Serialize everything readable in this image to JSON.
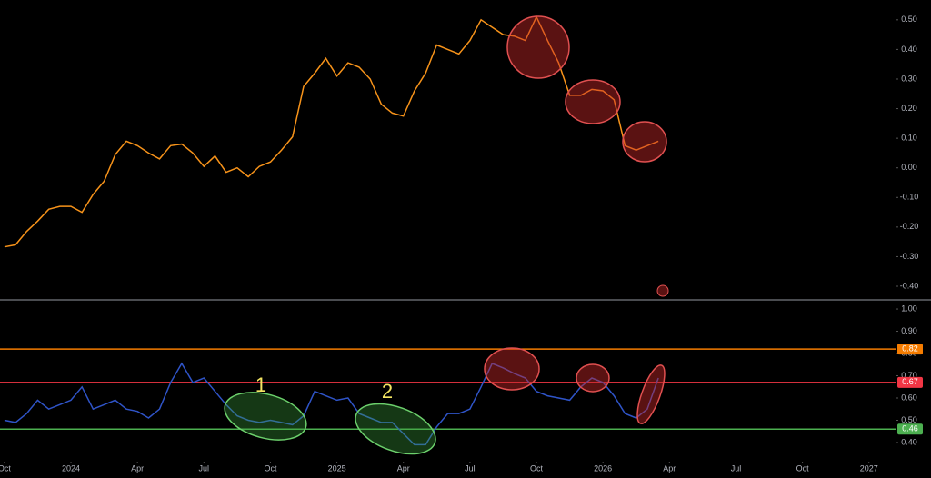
{
  "chart_data": [
    {
      "type": "line",
      "x": [
        0,
        0.5,
        1,
        1.5,
        2,
        2.5,
        3,
        3.5,
        4,
        4.5,
        5,
        5.5,
        6,
        6.5,
        7,
        7.5,
        8,
        8.5,
        9,
        9.5,
        10,
        10.5,
        11,
        11.5,
        12,
        12.5,
        13,
        13.5,
        14,
        14.5,
        15,
        15.5,
        16,
        16.5,
        17,
        17.5,
        18,
        18.5,
        19,
        19.5,
        20,
        20.5,
        21,
        21.5,
        22,
        22.5,
        23,
        23.5,
        24,
        24.5,
        25,
        25.5,
        26,
        26.5,
        27,
        27.5,
        28,
        28.5,
        29,
        29.5
      ],
      "series": [
        {
          "color": "#f7931a",
          "values": [
            -0.267,
            -0.26,
            -0.215,
            -0.18,
            -0.14,
            -0.13,
            -0.13,
            -0.15,
            -0.09,
            -0.045,
            0.045,
            0.09,
            0.075,
            0.05,
            0.03,
            0.075,
            0.08,
            0.05,
            0.005,
            0.04,
            -0.015,
            0,
            -0.03,
            0.005,
            0.02,
            0.06,
            0.105,
            0.275,
            0.32,
            0.37,
            0.31,
            0.355,
            0.34,
            0.3,
            0.215,
            0.185,
            0.175,
            0.26,
            0.32,
            0.415,
            0.4,
            0.385,
            0.43,
            0.5,
            0.475,
            0.45,
            0.445,
            0.43,
            0.51,
            0.43,
            0.355,
            0.245,
            0.245,
            0.265,
            0.26,
            0.23,
            0.075,
            0.06,
            0.075,
            0.09
          ]
        }
      ],
      "xlim": [
        -0.2,
        40.2
      ],
      "ylim": [
        -0.446,
        0.567
      ],
      "yticks": [
        {
          "value": 0.5,
          "label": "0.50"
        },
        {
          "value": 0.4,
          "label": "0.40"
        },
        {
          "value": 0.3,
          "label": "0.30"
        },
        {
          "value": 0.2,
          "label": "0.20"
        },
        {
          "value": 0.1,
          "label": "0.10"
        },
        {
          "value": 0,
          "label": "0.00"
        },
        {
          "value": -0.1,
          "label": "-0.10"
        },
        {
          "value": -0.2,
          "label": "-0.20"
        },
        {
          "value": -0.3,
          "label": "-0.30"
        },
        {
          "value": -0.4,
          "label": "-0.40"
        }
      ]
    },
    {
      "type": "line",
      "x": [
        0,
        0.5,
        1,
        1.5,
        2,
        2.5,
        3,
        3.5,
        4,
        4.5,
        5,
        5.5,
        6,
        6.5,
        7,
        7.5,
        8,
        8.5,
        9,
        9.5,
        10,
        10.5,
        11,
        11.5,
        12,
        12.5,
        13,
        13.5,
        14,
        14.5,
        15,
        15.5,
        16,
        16.5,
        17,
        17.5,
        18,
        18.5,
        19,
        19.5,
        20,
        20.5,
        21,
        21.5,
        22,
        22.5,
        23,
        23.5,
        24,
        24.5,
        25,
        25.5,
        26,
        26.5,
        27,
        27.5,
        28,
        28.5,
        29,
        29.5
      ],
      "series": [
        {
          "color": "#2f54c8",
          "values": [
            0.5,
            0.49,
            0.53,
            0.59,
            0.55,
            0.57,
            0.59,
            0.65,
            0.55,
            0.57,
            0.59,
            0.55,
            0.54,
            0.51,
            0.55,
            0.67,
            0.755,
            0.67,
            0.69,
            0.63,
            0.57,
            0.52,
            0.5,
            0.49,
            0.5,
            0.49,
            0.48,
            0.52,
            0.63,
            0.61,
            0.59,
            0.6,
            0.53,
            0.51,
            0.49,
            0.49,
            0.44,
            0.39,
            0.39,
            0.47,
            0.53,
            0.53,
            0.55,
            0.65,
            0.755,
            0.735,
            0.71,
            0.69,
            0.63,
            0.61,
            0.6,
            0.59,
            0.65,
            0.69,
            0.67,
            0.61,
            0.53,
            0.51,
            0.55,
            0.69
          ]
        }
      ],
      "levels": [
        {
          "value": 0.82,
          "color": "#f57c00"
        },
        {
          "value": 0.67,
          "color": "#f23645"
        },
        {
          "value": 0.46,
          "color": "#4caf50"
        }
      ],
      "annotations": [
        "1",
        "2"
      ],
      "xlim": [
        -0.2,
        40.2
      ],
      "ylim": [
        0.306,
        1.041
      ],
      "yticks": [
        {
          "value": 1,
          "label": "1.00"
        },
        {
          "value": 0.9,
          "label": "0.90"
        },
        {
          "value": 0.8,
          "label": "0.80"
        },
        {
          "value": 0.7,
          "label": "0.70"
        },
        {
          "value": 0.6,
          "label": "0.60"
        },
        {
          "value": 0.5,
          "label": "0.50"
        },
        {
          "value": 0.4,
          "label": "0.40"
        }
      ],
      "xticks": [
        {
          "value": 0,
          "label": "Oct"
        },
        {
          "value": 3,
          "label": "2024"
        },
        {
          "value": 6,
          "label": "Apr"
        },
        {
          "value": 9,
          "label": "Jul"
        },
        {
          "value": 12,
          "label": "Oct"
        },
        {
          "value": 15,
          "label": "2025"
        },
        {
          "value": 18,
          "label": "Apr"
        },
        {
          "value": 21,
          "label": "Jul"
        },
        {
          "value": 24,
          "label": "Oct"
        },
        {
          "value": 27,
          "label": "2026"
        },
        {
          "value": 30,
          "label": "Apr"
        },
        {
          "value": 33,
          "label": "Jul"
        },
        {
          "value": 36,
          "label": "Oct"
        },
        {
          "value": 39,
          "label": "2027"
        }
      ]
    }
  ]
}
